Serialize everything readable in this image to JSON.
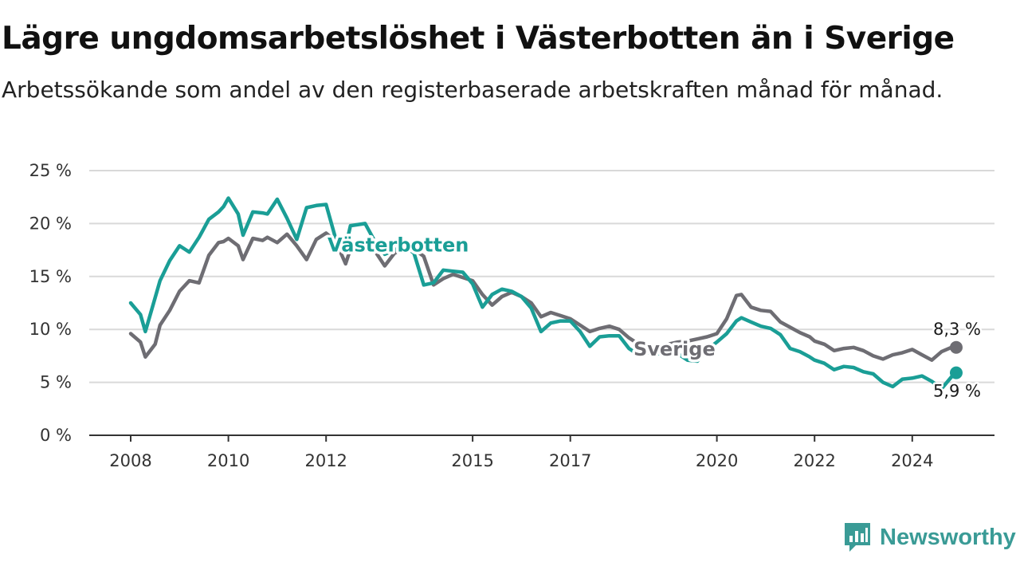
{
  "header": {
    "title": "Lägre ungdomsarbetslöshet i Västerbotten än i Sverige",
    "subtitle": "Arbetssökande som andel av den registerbaserade arbetskraften månad för månad."
  },
  "brand": {
    "name": "Newsworthy",
    "logo_icon": "newsworthy-logo-icon",
    "color": "#3a9b96"
  },
  "chart_data": {
    "type": "line",
    "title": "Lägre ungdomsarbetslöshet i Västerbotten än i Sverige",
    "subtitle": "Arbetssökande som andel av den registerbaserade arbetskraften månad för månad.",
    "xlabel": "",
    "ylabel": "",
    "xlim": [
      2008,
      2025
    ],
    "ylim": [
      0,
      25
    ],
    "x_ticks": [
      {
        "value": 2008.0,
        "label": "2008"
      },
      {
        "value": 2010.0,
        "label": "2010"
      },
      {
        "value": 2012.0,
        "label": "2012"
      },
      {
        "value": 2015.0,
        "label": "2015"
      },
      {
        "value": 2017.0,
        "label": "2017"
      },
      {
        "value": 2020.0,
        "label": "2020"
      },
      {
        "value": 2022.0,
        "label": "2022"
      },
      {
        "value": 2024.0,
        "label": "2024"
      }
    ],
    "y_ticks": [
      {
        "value": 0,
        "label": "0 %"
      },
      {
        "value": 5,
        "label": "5 %"
      },
      {
        "value": 10,
        "label": "10 %"
      },
      {
        "value": 15,
        "label": "15 %"
      },
      {
        "value": 20,
        "label": "20 %"
      },
      {
        "value": 25,
        "label": "25 %"
      }
    ],
    "grid": "horizontal",
    "legend": "inline labels",
    "series": [
      {
        "name": "Sverige",
        "color": "#6e6d73",
        "end_label": "8,3 %",
        "x": [
          2008.0,
          2008.2,
          2008.3,
          2008.5,
          2008.6,
          2008.8,
          2009.0,
          2009.2,
          2009.4,
          2009.6,
          2009.8,
          2009.9,
          2010.0,
          2010.2,
          2010.3,
          2010.5,
          2010.7,
          2010.8,
          2011.0,
          2011.2,
          2011.4,
          2011.6,
          2011.8,
          2012.0,
          2012.2,
          2012.4,
          2012.5,
          2012.8,
          2013.0,
          2013.2,
          2013.4,
          2013.6,
          2013.8,
          2014.0,
          2014.2,
          2014.4,
          2014.6,
          2014.8,
          2015.0,
          2015.2,
          2015.4,
          2015.6,
          2015.8,
          2016.0,
          2016.2,
          2016.4,
          2016.6,
          2016.8,
          2017.0,
          2017.2,
          2017.4,
          2017.6,
          2017.8,
          2018.0,
          2018.2,
          2018.4,
          2018.6,
          2018.8,
          2019.0,
          2019.2,
          2019.4,
          2019.6,
          2019.8,
          2020.0,
          2020.2,
          2020.4,
          2020.5,
          2020.7,
          2020.9,
          2021.1,
          2021.3,
          2021.5,
          2021.7,
          2021.9,
          2022.0,
          2022.2,
          2022.4,
          2022.6,
          2022.8,
          2023.0,
          2023.2,
          2023.4,
          2023.6,
          2023.8,
          2024.0,
          2024.2,
          2024.4,
          2024.6,
          2024.8,
          2024.9
        ],
        "y": [
          9.6,
          8.8,
          7.4,
          8.6,
          10.4,
          11.8,
          13.6,
          14.6,
          14.4,
          17.0,
          18.2,
          18.3,
          18.6,
          17.9,
          16.6,
          18.6,
          18.4,
          18.7,
          18.2,
          19.0,
          17.9,
          16.6,
          18.5,
          19.1,
          18.3,
          16.2,
          17.6,
          18.4,
          17.4,
          16.0,
          17.2,
          17.6,
          17.6,
          16.9,
          14.2,
          14.8,
          15.2,
          14.9,
          14.6,
          13.3,
          12.3,
          13.1,
          13.5,
          13.1,
          12.5,
          11.2,
          11.6,
          11.3,
          11.0,
          10.4,
          9.8,
          10.1,
          10.3,
          10.0,
          9.2,
          8.6,
          8.3,
          8.2,
          8.6,
          8.8,
          8.9,
          9.1,
          9.3,
          9.6,
          11.0,
          13.2,
          13.3,
          12.1,
          11.8,
          11.7,
          10.7,
          10.2,
          9.7,
          9.3,
          8.9,
          8.6,
          8.0,
          8.2,
          8.3,
          8.0,
          7.5,
          7.2,
          7.6,
          7.8,
          8.1,
          7.6,
          7.1,
          7.9,
          8.3,
          8.3
        ]
      },
      {
        "name": "Västerbotten",
        "color": "#1a9e96",
        "end_label": "5,9 %",
        "x": [
          2008.0,
          2008.2,
          2008.3,
          2008.5,
          2008.6,
          2008.8,
          2009.0,
          2009.2,
          2009.4,
          2009.6,
          2009.8,
          2009.9,
          2010.0,
          2010.2,
          2010.3,
          2010.5,
          2010.7,
          2010.8,
          2011.0,
          2011.2,
          2011.4,
          2011.6,
          2011.8,
          2012.0,
          2012.2,
          2012.4,
          2012.5,
          2012.8,
          2013.0,
          2013.2,
          2013.4,
          2013.6,
          2013.8,
          2014.0,
          2014.2,
          2014.4,
          2014.6,
          2014.8,
          2015.0,
          2015.2,
          2015.4,
          2015.6,
          2015.8,
          2016.0,
          2016.2,
          2016.4,
          2016.6,
          2016.8,
          2017.0,
          2017.2,
          2017.4,
          2017.6,
          2017.8,
          2018.0,
          2018.2,
          2018.4,
          2018.6,
          2018.8,
          2019.0,
          2019.2,
          2019.4,
          2019.6,
          2019.8,
          2020.0,
          2020.2,
          2020.4,
          2020.5,
          2020.7,
          2020.9,
          2021.1,
          2021.3,
          2021.5,
          2021.7,
          2021.9,
          2022.0,
          2022.2,
          2022.4,
          2022.6,
          2022.8,
          2023.0,
          2023.2,
          2023.4,
          2023.6,
          2023.8,
          2024.0,
          2024.2,
          2024.4,
          2024.6,
          2024.8,
          2024.9
        ],
        "y": [
          12.5,
          11.4,
          9.8,
          13.0,
          14.6,
          16.5,
          17.9,
          17.3,
          18.7,
          20.4,
          21.1,
          21.6,
          22.4,
          20.9,
          18.9,
          21.1,
          21.0,
          20.9,
          22.3,
          20.5,
          18.5,
          21.5,
          21.7,
          21.8,
          18.5,
          17.8,
          19.8,
          20.0,
          18.3,
          17.1,
          17.5,
          17.9,
          17.2,
          14.2,
          14.4,
          15.6,
          15.5,
          15.4,
          14.3,
          12.1,
          13.3,
          13.8,
          13.6,
          13.1,
          12.0,
          9.8,
          10.6,
          10.8,
          10.8,
          9.8,
          8.4,
          9.3,
          9.4,
          9.4,
          8.2,
          7.6,
          7.8,
          7.7,
          7.9,
          7.7,
          7.1,
          7.0,
          8.1,
          8.8,
          9.6,
          10.8,
          11.1,
          10.7,
          10.3,
          10.1,
          9.5,
          8.2,
          7.9,
          7.4,
          7.1,
          6.8,
          6.2,
          6.5,
          6.4,
          6.0,
          5.8,
          5.0,
          4.6,
          5.3,
          5.4,
          5.6,
          5.1,
          4.4,
          5.5,
          5.9
        ]
      }
    ]
  }
}
